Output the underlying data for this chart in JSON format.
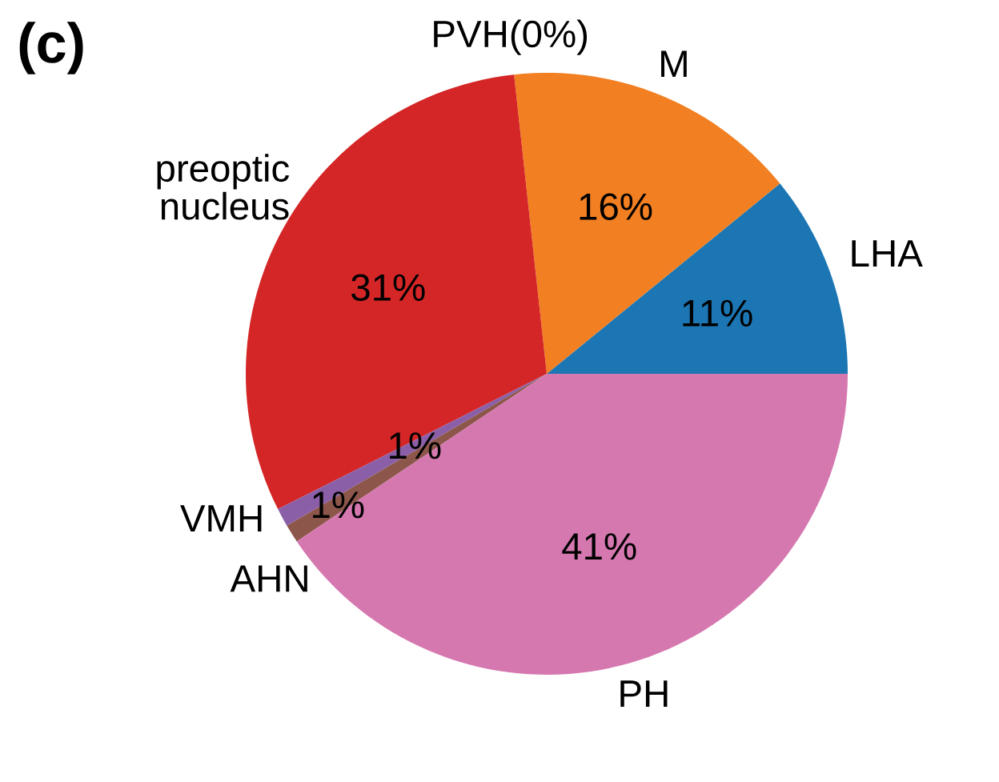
{
  "chart_data": {
    "type": "pie",
    "title": "(c)",
    "categories": [
      "LHA",
      "M",
      "PVH(0%)",
      "preoptic nucleus",
      "VMH",
      "AHN",
      "PH"
    ],
    "values": [
      11,
      16,
      0,
      31,
      1,
      1,
      41
    ],
    "colors": [
      "#1b76b3",
      "#f27f21",
      "#2ca02c",
      "#d42626",
      "#8a5fa8",
      "#8c564b",
      "#d678b0"
    ],
    "value_labels": [
      "11%",
      "16%",
      null,
      "31%",
      "1%",
      "1%",
      "41%"
    ]
  }
}
